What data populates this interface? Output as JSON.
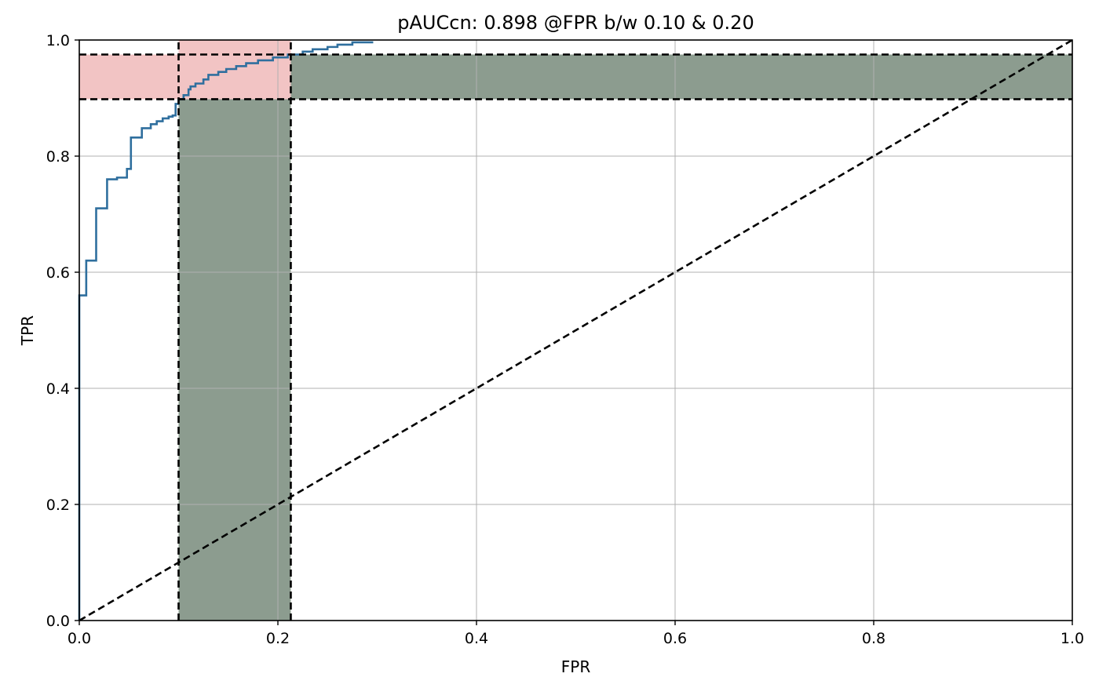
{
  "chart_data": {
    "type": "line",
    "title": "pAUCcn: 0.898 @FPR b/w 0.10 & 0.20",
    "xlabel": "FPR",
    "ylabel": "TPR",
    "xlim": [
      0.0,
      1.0
    ],
    "ylim": [
      0.0,
      1.0
    ],
    "grid": true,
    "xticks": [
      0.0,
      0.2,
      0.4,
      0.6,
      0.8,
      1.0
    ],
    "xtick_labels": [
      "0.0",
      "0.2",
      "0.4",
      "0.6",
      "0.8",
      "1.0"
    ],
    "yticks": [
      0.0,
      0.2,
      0.4,
      0.6,
      0.8,
      1.0
    ],
    "ytick_labels": [
      "0.0",
      "0.2",
      "0.4",
      "0.6",
      "0.8",
      "1.0"
    ],
    "colors": {
      "roc_curve": "#2f6f9e",
      "green_region": "#8c9c8f",
      "red_region": "#f2c4c4",
      "dashed_lines": "#000000",
      "grid": "#b0b0b0"
    },
    "roc_curve": {
      "x": [
        0.0,
        0.0,
        0.007,
        0.007,
        0.017,
        0.017,
        0.028,
        0.028,
        0.038,
        0.038,
        0.048,
        0.048,
        0.052,
        0.052,
        0.063,
        0.063,
        0.072,
        0.072,
        0.078,
        0.078,
        0.084,
        0.084,
        0.09,
        0.09,
        0.094,
        0.094,
        0.097,
        0.097,
        0.1,
        0.1,
        0.105,
        0.105,
        0.11,
        0.11,
        0.112,
        0.112,
        0.117,
        0.117,
        0.125,
        0.125,
        0.13,
        0.13,
        0.14,
        0.14,
        0.148,
        0.148,
        0.158,
        0.158,
        0.168,
        0.168,
        0.18,
        0.18,
        0.195,
        0.195,
        0.21,
        0.21,
        0.225,
        0.225,
        0.235,
        0.235,
        0.25,
        0.25,
        0.26,
        0.26,
        0.275,
        0.275,
        0.296
      ],
      "y": [
        0.0,
        0.56,
        0.56,
        0.62,
        0.62,
        0.71,
        0.71,
        0.76,
        0.76,
        0.763,
        0.763,
        0.778,
        0.778,
        0.832,
        0.832,
        0.848,
        0.848,
        0.855,
        0.855,
        0.86,
        0.86,
        0.865,
        0.865,
        0.868,
        0.868,
        0.87,
        0.87,
        0.89,
        0.89,
        0.898,
        0.898,
        0.905,
        0.905,
        0.915,
        0.915,
        0.92,
        0.92,
        0.925,
        0.925,
        0.932,
        0.932,
        0.94,
        0.94,
        0.945,
        0.945,
        0.95,
        0.95,
        0.955,
        0.955,
        0.96,
        0.96,
        0.965,
        0.965,
        0.97,
        0.97,
        0.975,
        0.975,
        0.98,
        0.98,
        0.984,
        0.984,
        0.988,
        0.988,
        0.992,
        0.992,
        0.996,
        0.996
      ]
    },
    "fpr_band": [
      0.1,
      0.213
    ],
    "tpr_band": [
      0.898,
      0.975
    ],
    "chance_line": {
      "x": [
        0.0,
        1.0
      ],
      "y": [
        0.0,
        1.0
      ]
    }
  }
}
